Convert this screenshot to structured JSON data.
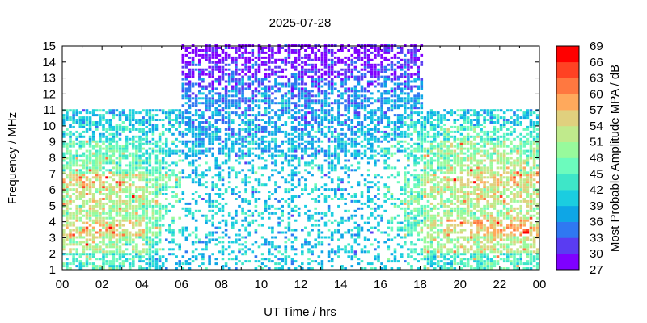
{
  "chart_data": {
    "type": "heatmap",
    "title": "2025-07-28",
    "xlabel": "UT Time / hrs",
    "ylabel": "Frequency / MHz",
    "colorbar_label": "Most Probable Amplitude MPA / dB",
    "xlim": [
      0,
      24
    ],
    "ylim": [
      1,
      15
    ],
    "clim": [
      27,
      69
    ],
    "x_tick_labels": [
      "00",
      "02",
      "04",
      "06",
      "08",
      "10",
      "12",
      "14",
      "16",
      "18",
      "20",
      "22",
      "00"
    ],
    "y_tick_labels": [
      "1",
      "2",
      "3",
      "4",
      "5",
      "6",
      "7",
      "8",
      "9",
      "10",
      "11",
      "12",
      "13",
      "14",
      "15"
    ],
    "colorbar_ticks": [
      "27",
      "30",
      "33",
      "36",
      "39",
      "42",
      "45",
      "48",
      "51",
      "54",
      "57",
      "60",
      "63",
      "66",
      "69"
    ],
    "colorbar_colors": [
      "#7f00ff",
      "#5a3cf2",
      "#2f78f2",
      "#0ea6e6",
      "#1bcde0",
      "#3ee6c8",
      "#6cfbbd",
      "#98fa9c",
      "#c0ea8c",
      "#e0d07e",
      "#ffa95c",
      "#ff7840",
      "#ff4223",
      "#ff0000"
    ],
    "grid_note": "median MPA (dB) per UT hour (rows) and 1-MHz band from 1-2 to 14-15 MHz (columns); null = no data",
    "values": [
      [
        44,
        52,
        55,
        50,
        53,
        54,
        48,
        46,
        42,
        40,
        null,
        null,
        null,
        null
      ],
      [
        44,
        51,
        56,
        51,
        53,
        55,
        49,
        46,
        42,
        40,
        null,
        null,
        null,
        null
      ],
      [
        44,
        50,
        55,
        50,
        52,
        53,
        47,
        46,
        42,
        40,
        null,
        null,
        null,
        null
      ],
      [
        44,
        49,
        54,
        50,
        51,
        52,
        46,
        45,
        42,
        40,
        null,
        null,
        null,
        null
      ],
      [
        42,
        45,
        48,
        48,
        49,
        49,
        45,
        44,
        41,
        40,
        null,
        null,
        null,
        null
      ],
      [
        40,
        42,
        44,
        45,
        45,
        46,
        43,
        42,
        41,
        40,
        null,
        null,
        null,
        null
      ],
      [
        40,
        40,
        41,
        42,
        40,
        40,
        40,
        39,
        38,
        37,
        36,
        34,
        30,
        28
      ],
      [
        40,
        40,
        40,
        41,
        40,
        40,
        40,
        39,
        38,
        37,
        36,
        34,
        30,
        28
      ],
      [
        40,
        40,
        40,
        40,
        40,
        40,
        40,
        39,
        38,
        37,
        36,
        34,
        30,
        28
      ],
      [
        40,
        40,
        40,
        40,
        40,
        40,
        40,
        39,
        38,
        37,
        36,
        34,
        30,
        28
      ],
      [
        40,
        40,
        40,
        40,
        40,
        40,
        40,
        39,
        38,
        37,
        36,
        34,
        30,
        28
      ],
      [
        40,
        40,
        40,
        40,
        40,
        40,
        40,
        39,
        38,
        37,
        36,
        34,
        30,
        28
      ],
      [
        40,
        40,
        40,
        40,
        40,
        40,
        40,
        39,
        38,
        37,
        36,
        34,
        30,
        28
      ],
      [
        40,
        40,
        40,
        40,
        40,
        40,
        40,
        39,
        38,
        37,
        36,
        34,
        30,
        28
      ],
      [
        40,
        40,
        40,
        40,
        40,
        40,
        40,
        39,
        38,
        37,
        36,
        34,
        30,
        28
      ],
      [
        40,
        40,
        40,
        41,
        40,
        40,
        40,
        40,
        39,
        38,
        36,
        34,
        30,
        28
      ],
      [
        41,
        42,
        43,
        44,
        44,
        44,
        43,
        42,
        40,
        38,
        37,
        35,
        31,
        29
      ],
      [
        42,
        44,
        46,
        46,
        47,
        47,
        45,
        44,
        42,
        40,
        37,
        35,
        31,
        29
      ],
      [
        44,
        48,
        52,
        50,
        51,
        52,
        48,
        48,
        44,
        41,
        null,
        null,
        null,
        null
      ],
      [
        44,
        50,
        55,
        50,
        52,
        54,
        50,
        50,
        46,
        41,
        null,
        null,
        null,
        null
      ],
      [
        44,
        51,
        56,
        51,
        53,
        55,
        52,
        50,
        46,
        41,
        null,
        null,
        null,
        null
      ],
      [
        45,
        52,
        56,
        52,
        53,
        55,
        52,
        49,
        45,
        41,
        null,
        null,
        null,
        null
      ],
      [
        45,
        52,
        56,
        51,
        53,
        55,
        51,
        48,
        44,
        40,
        null,
        null,
        null,
        null
      ],
      [
        45,
        52,
        56,
        51,
        53,
        55,
        51,
        47,
        44,
        40,
        null,
        null,
        null,
        null
      ]
    ]
  }
}
